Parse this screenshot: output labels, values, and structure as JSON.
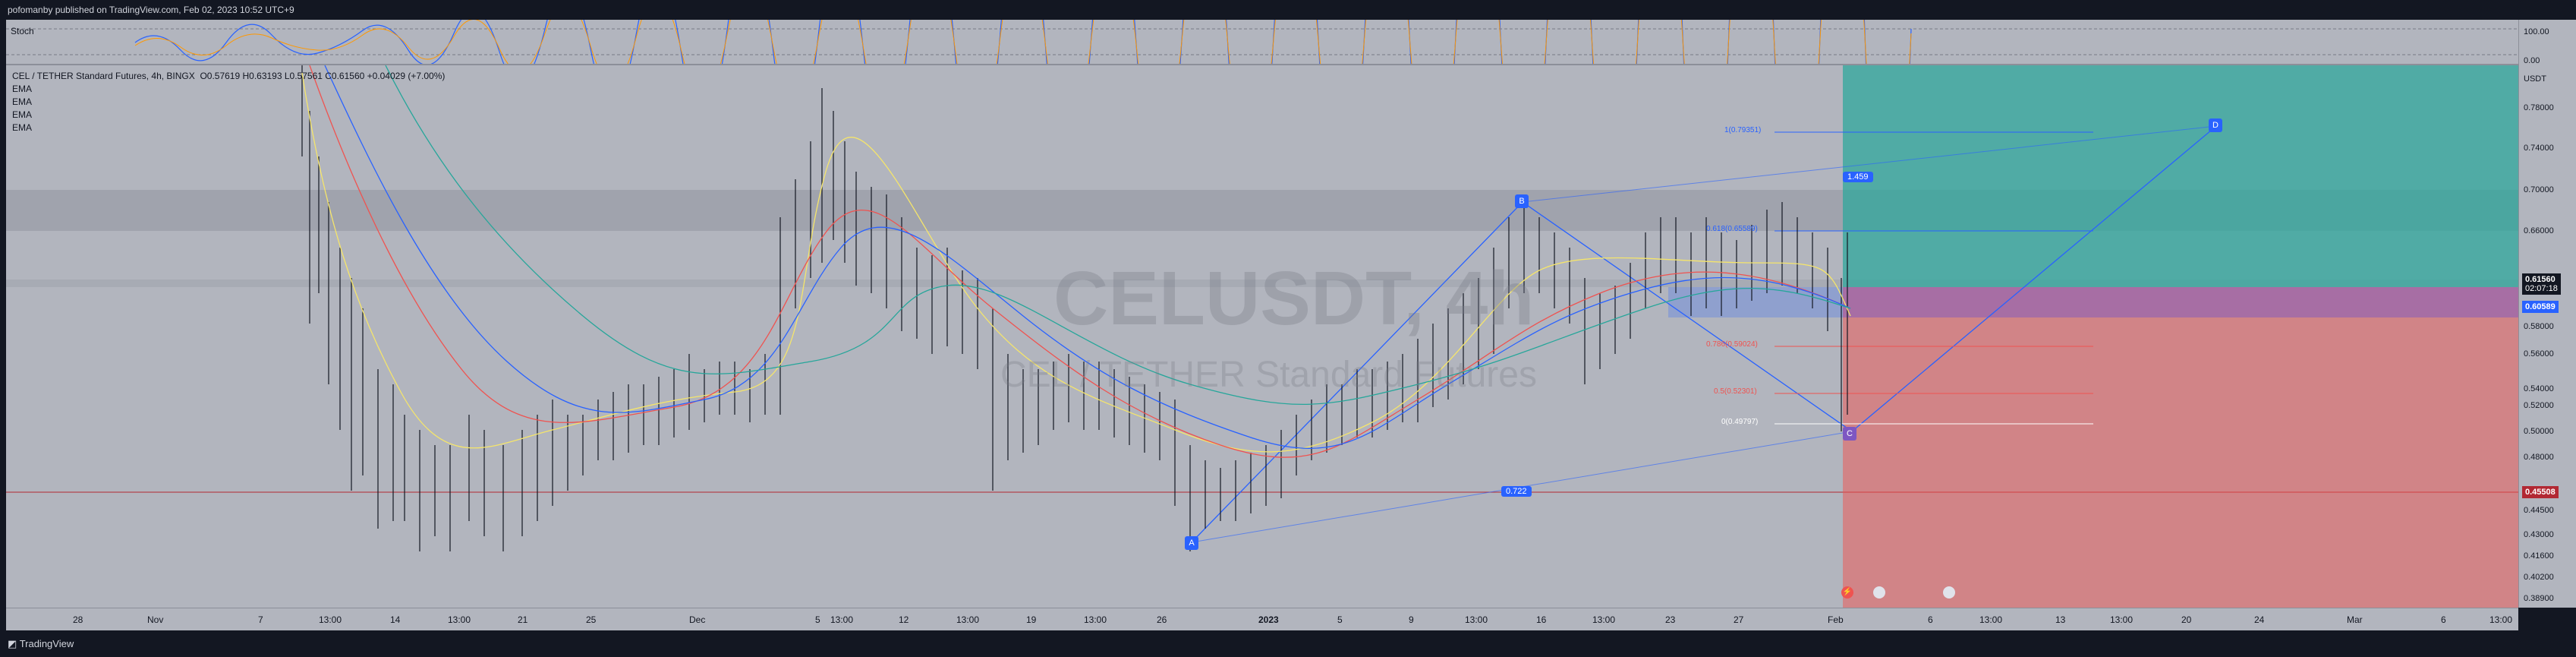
{
  "header": {
    "publisher": "pofomanby published on TradingView.com, Feb 02, 2023 10:52 UTC+9"
  },
  "indicators": {
    "stoch_label": "Stoch",
    "ema_labels": [
      "EMA",
      "EMA",
      "EMA",
      "EMA"
    ]
  },
  "symbol": {
    "title": "CEL / TETHER Standard Futures, 4h, BINGX",
    "ohlc": "O0.57619  H0.63193  L0.57561  C0.61560  +0.04029 (+7.00%)",
    "watermark": "CELUSDT, 4h",
    "watermark_sub": "CEL / TETHER Standard Futures"
  },
  "price_scale": {
    "unit": "USDT",
    "stoch_top": "100.00",
    "stoch_bottom": "0.00",
    "ticks": [
      "0.78000",
      "0.74000",
      "0.70000",
      "0.66000",
      "0.58000",
      "0.56000",
      "0.54000",
      "0.52000",
      "0.50000",
      "0.48000",
      "0.44500",
      "0.43000",
      "0.41600",
      "0.40200",
      "0.38900"
    ],
    "last_price": "0.61560",
    "countdown": "02:07:18",
    "level_blue": "0.60589",
    "level_red": "0.45508"
  },
  "time_scale": [
    "28",
    "Nov",
    "7",
    "13:00",
    "14",
    "13:00",
    "21",
    "25",
    "Dec",
    "5",
    "13:00",
    "12",
    "13:00",
    "19",
    "13:00",
    "26",
    "2023",
    "5",
    "9",
    "13:00",
    "16",
    "13:00",
    "23",
    "27",
    "Feb",
    "6",
    "13:00",
    "13",
    "13:00",
    "20",
    "24",
    "Mar",
    "6",
    "13:00"
  ],
  "pattern": {
    "points": [
      "A",
      "B",
      "C",
      "D"
    ],
    "ratio_ab": "0.722",
    "ratio_bd": "1.459",
    "fib_labels": [
      "1(0.79351)",
      "0.618(0.65589)",
      "0.786(0.59024)",
      "0.5(0.52301)",
      "0(0.49797)"
    ]
  },
  "footer": {
    "brand": "TradingView"
  },
  "colors": {
    "bg": "#131722",
    "chart": "#b2b5be",
    "accent": "#2962ff",
    "green_zone": "#26a69a",
    "red_zone": "#ef5350"
  }
}
